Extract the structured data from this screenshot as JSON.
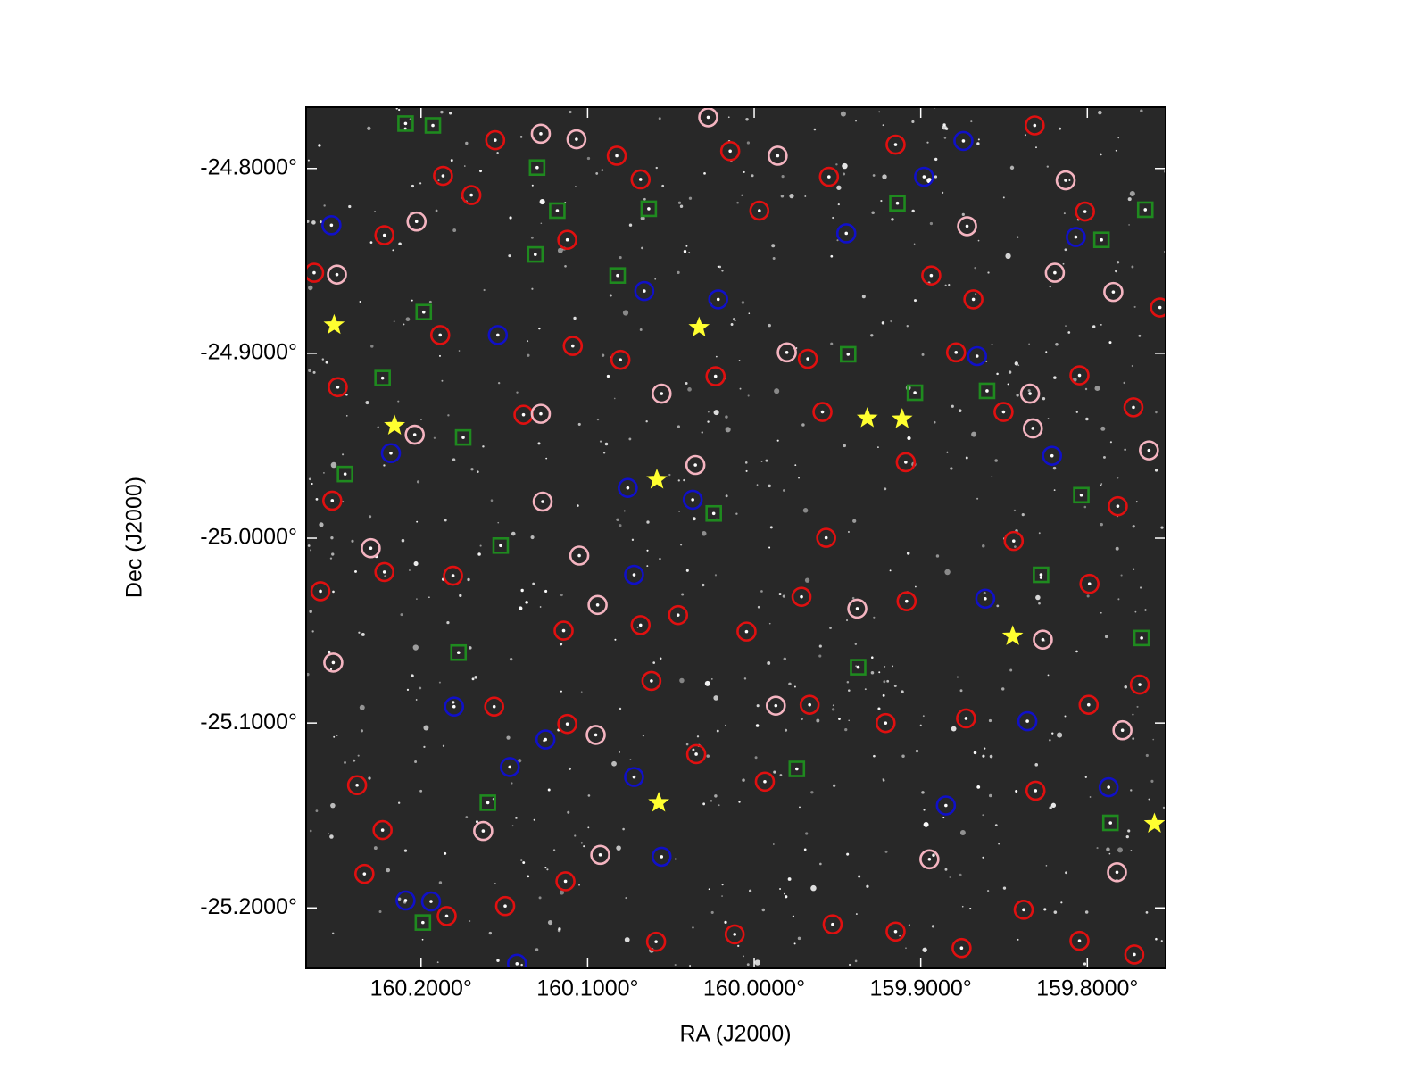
{
  "chart_data": {
    "type": "scatter",
    "xlabel": "RA (J2000)",
    "ylabel": "Dec (J2000)",
    "xlim": [
      160.269,
      159.753
    ],
    "ylim": [
      -25.2327,
      -24.7668
    ],
    "xticks": [
      {
        "value": 160.2,
        "label": "160.2000°"
      },
      {
        "value": 160.1,
        "label": "160.1000°"
      },
      {
        "value": 160.0,
        "label": "160.0000°"
      },
      {
        "value": 159.9,
        "label": "159.9000°"
      },
      {
        "value": 159.8,
        "label": "159.8000°"
      }
    ],
    "yticks": [
      {
        "value": -24.8,
        "label": "-24.8000°"
      },
      {
        "value": -24.9,
        "label": "-24.9000°"
      },
      {
        "value": -25.0,
        "label": "-25.0000°"
      },
      {
        "value": -25.1,
        "label": "-25.1000°"
      },
      {
        "value": -25.2,
        "label": "-25.2000°"
      }
    ],
    "grid": false,
    "series": [
      {
        "marker": "circle",
        "color": "#e01010",
        "x": [
          160.2642,
          160.25,
          160.222,
          160.1868,
          160.1698,
          160.1555,
          160.1122,
          160.0825,
          160.0682,
          160.0144,
          159.9969,
          159.9551,
          159.9151,
          159.8316,
          159.8014,
          159.7564,
          159.8684,
          159.8937,
          160.1885,
          160.1385,
          160.1089,
          160.0803,
          160.0232,
          159.9678,
          159.959,
          159.909,
          159.8788,
          159.8503,
          159.8047,
          159.7723,
          160.2533,
          160.222,
          160.1808,
          160.1144,
          160.0682,
          160.0457,
          160.0046,
          159.9716,
          159.9568,
          159.9085,
          159.8442,
          159.7987,
          159.7817,
          160.2604,
          160.2384,
          160.2231,
          160.1561,
          160.1122,
          160.0617,
          160.0348,
          159.9936,
          159.9667,
          159.9211,
          159.8728,
          159.8311,
          159.7992,
          159.7685,
          160.234,
          160.1846,
          160.1495,
          160.1133,
          160.0589,
          160.0117,
          159.9529,
          159.9151,
          159.8755,
          159.8382,
          159.8047,
          159.7718
        ],
        "y": [
          -24.8564,
          -24.9183,
          -24.8361,
          -24.804,
          -24.8144,
          -24.7847,
          -24.8386,
          -24.7931,
          -24.8059,
          -24.7906,
          -24.8228,
          -24.8045,
          -24.7871,
          -24.7767,
          -24.8233,
          -24.8752,
          -24.8708,
          -24.8579,
          -24.8901,
          -24.9332,
          -24.896,
          -24.9035,
          -24.9124,
          -24.903,
          -24.9317,
          -24.9589,
          -24.8995,
          -24.9317,
          -24.9119,
          -24.9292,
          -24.9797,
          -25.0183,
          -25.0203,
          -25.05,
          -25.047,
          -25.0416,
          -25.0505,
          -25.0317,
          -24.9998,
          -25.0341,
          -25.0015,
          -25.0247,
          -24.9827,
          -25.0287,
          -25.1336,
          -25.1579,
          -25.0911,
          -25.1005,
          -25.0772,
          -25.1168,
          -25.1317,
          -25.0901,
          -25.1,
          -25.0975,
          -25.1366,
          -25.0901,
          -25.0792,
          -25.1816,
          -25.2044,
          -25.199,
          -25.1856,
          -25.2183,
          -25.2143,
          -25.2089,
          -25.2128,
          -25.2217,
          -25.201,
          -25.2178,
          -25.2252
        ]
      },
      {
        "marker": "circle",
        "color": "#f4b4c0",
        "x": [
          160.2505,
          160.2027,
          160.1281,
          160.1067,
          160.0276,
          159.9859,
          159.8722,
          159.7844,
          159.8344,
          159.813,
          160.1281,
          160.0556,
          160.0353,
          159.9804,
          160.2038,
          160.127,
          159.8327,
          160.2302,
          160.105,
          160.094,
          159.9381,
          159.8267,
          160.2527,
          160.0951,
          160.1627,
          159.987,
          159.8948,
          159.7789,
          160.0924,
          159.763,
          159.7822,
          159.8195
        ],
        "y": [
          -24.8574,
          -24.8287,
          -24.7812,
          -24.7842,
          -24.7723,
          -24.7931,
          -24.8312,
          -24.8668,
          -24.9218,
          -24.8064,
          -24.9327,
          -24.9218,
          -24.9604,
          -24.8995,
          -24.944,
          -24.9802,
          -24.9406,
          -25.0054,
          -25.0094,
          -25.0361,
          -25.0381,
          -25.0549,
          -25.0673,
          -25.1064,
          -25.1584,
          -25.0906,
          -25.1737,
          -25.1039,
          -25.1713,
          -24.9525,
          -25.1807,
          -24.8564
        ]
      },
      {
        "marker": "circle",
        "color": "#1010c8",
        "x": [
          160.2538,
          159.898,
          159.8744,
          159.9447,
          159.8069,
          160.066,
          160.0216,
          160.1539,
          159.8662,
          160.2181,
          160.0759,
          160.0369,
          159.8212,
          160.0721,
          159.8613,
          160.1802,
          160.1253,
          160.1467,
          160.0721,
          159.7872,
          159.8849,
          159.836,
          160.0556,
          160.2093,
          160.194,
          160.1424
        ],
        "y": [
          -24.8307,
          -24.8045,
          -24.7851,
          -24.8351,
          -24.8371,
          -24.8663,
          -24.8708,
          -24.8901,
          -24.9015,
          -24.954,
          -24.9728,
          -24.9792,
          -24.9554,
          -25.0198,
          -25.0327,
          -25.0911,
          -25.1089,
          -25.1238,
          -25.1292,
          -25.1347,
          -25.1446,
          -25.099,
          -25.1723,
          -25.196,
          -25.1965,
          -25.2302
        ]
      },
      {
        "marker": "square",
        "color": "#1f8a1f",
        "x": [
          160.2093,
          160.1929,
          160.1303,
          160.1182,
          160.0633,
          159.914,
          159.7915,
          159.7652,
          160.1314,
          160.082,
          160.1984,
          160.2231,
          159.9436,
          159.9035,
          159.8602,
          160.1747,
          160.2456,
          160.0243,
          159.8036,
          160.1522,
          159.8278,
          160.1775,
          159.9376,
          159.7674,
          160.1599,
          159.9744,
          159.7861,
          160.1989
        ],
        "y": [
          -24.7757,
          -24.7767,
          -24.7995,
          -24.8228,
          -24.8218,
          -24.8188,
          -24.8386,
          -24.8223,
          -24.8465,
          -24.8579,
          -24.8777,
          -24.9134,
          -24.9005,
          -24.9213,
          -24.9203,
          -24.9455,
          -24.9653,
          -24.9866,
          -24.9767,
          -25.004,
          -25.0198,
          -25.0619,
          -25.0698,
          -25.054,
          -25.1431,
          -25.1248,
          -25.154,
          -25.2079
        ]
      },
      {
        "marker": "star",
        "color": "#ffff30",
        "x": [
          160.2522,
          160.0331,
          160.2159,
          160.0584,
          159.9321,
          159.9112,
          159.8448,
          160.0573,
          159.7597
        ],
        "y": [
          -24.8847,
          -24.8861,
          -24.9391,
          -24.9683,
          -24.9351,
          -24.9356,
          -25.053,
          -25.1431,
          -25.1545
        ]
      }
    ]
  }
}
